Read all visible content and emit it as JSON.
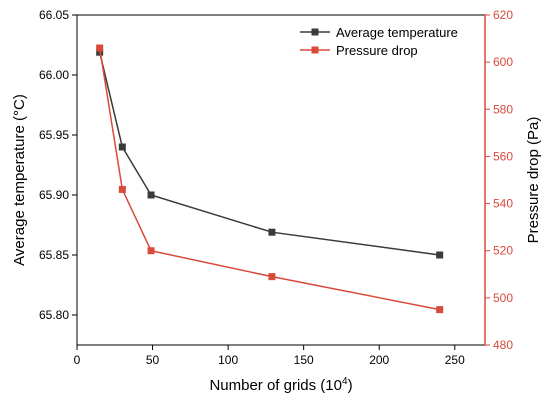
{
  "chart_data": {
    "type": "line",
    "x": [
      15,
      30,
      49,
      129,
      240
    ],
    "xlabel": "Number of grids (10",
    "xlabel_sup": "4",
    "xlabel_tail": ")",
    "xlim": [
      0,
      270
    ],
    "xticks": [
      0,
      50,
      100,
      150,
      200,
      250
    ],
    "y_left": {
      "label": "Average temperature (°C)",
      "lim": [
        65.775,
        66.05
      ],
      "ticks": [
        "65.80",
        "65.85",
        "65.90",
        "65.95",
        "66.00",
        "66.05"
      ],
      "color": "#000000"
    },
    "y_right": {
      "label": "Pressure drop (Pa)",
      "lim": [
        480,
        620
      ],
      "ticks": [
        480,
        500,
        520,
        540,
        560,
        580,
        600,
        620
      ],
      "color": "#d84b3a"
    },
    "series": [
      {
        "name": "Average temperature",
        "axis": "left",
        "color": "#3a3a3a",
        "values": [
          66.019,
          65.94,
          65.9,
          65.869,
          65.85
        ]
      },
      {
        "name": "Pressure drop",
        "axis": "right",
        "color": "#d84b3a",
        "values": [
          606,
          546,
          520,
          509,
          495
        ]
      }
    ],
    "legend": "top-right",
    "grid": false
  }
}
